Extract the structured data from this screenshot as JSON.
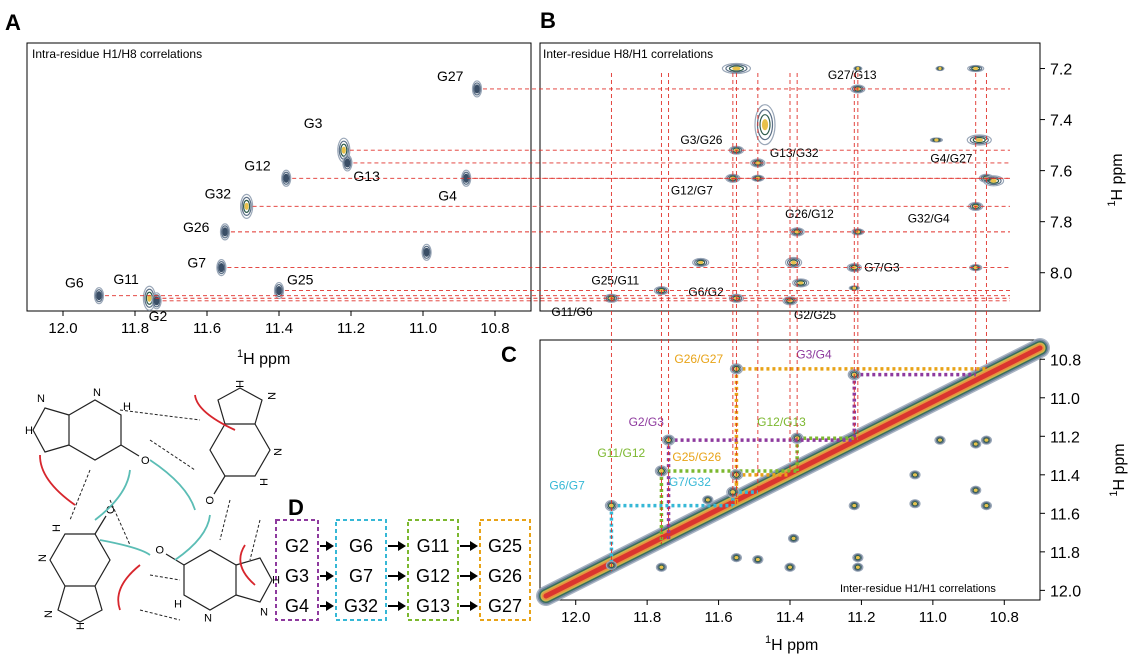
{
  "panels": {
    "A": {
      "letter": "A",
      "title": "Intra-residue H1/H8 correlations",
      "xlabel": "ppm",
      "xlabel_sup": "1",
      "xlabel_base": "H"
    },
    "B": {
      "letter": "B",
      "title": "Inter-residue H8/H1 correlations",
      "ylabel_sup": "1",
      "ylabel_base": "H",
      "ylabel": "ppm"
    },
    "C": {
      "letter": "C",
      "title": "Inter-residue H1/H1 correlations",
      "xlabel_sup": "1",
      "xlabel_base": "H",
      "xlabel": "ppm",
      "ylabel_sup": "1",
      "ylabel_base": "H",
      "ylabel": "ppm"
    },
    "D": {
      "letter": "D"
    }
  },
  "chart_data": [
    {
      "type": "scatter",
      "title": "Intra-residue H1/H8 correlations",
      "xlabel": "1H ppm",
      "x_ticks": [
        "12.0",
        "11.8",
        "11.6",
        "11.4",
        "11.2",
        "11.0",
        "10.8"
      ],
      "xlim": [
        12.1,
        10.7
      ],
      "ylim": [
        8.15,
        7.1
      ],
      "points": [
        {
          "label": "G27",
          "x": 10.85,
          "y": 7.28
        },
        {
          "label": "G3",
          "x": 11.22,
          "y": 7.52
        },
        {
          "label": "G13",
          "x": 11.21,
          "y": 7.57
        },
        {
          "label": "G12",
          "x": 11.38,
          "y": 7.63
        },
        {
          "label": "G4",
          "x": 10.88,
          "y": 7.63
        },
        {
          "label": "G32",
          "x": 11.49,
          "y": 7.74
        },
        {
          "label": "G26",
          "x": 11.55,
          "y": 7.84
        },
        {
          "label": "G7",
          "x": 11.56,
          "y": 7.98
        },
        {
          "label": "G25",
          "x": 11.4,
          "y": 8.07
        },
        {
          "label": "G6",
          "x": 11.9,
          "y": 8.09
        },
        {
          "label": "G11",
          "x": 11.76,
          "y": 8.1
        },
        {
          "label": "G2",
          "x": 11.74,
          "y": 8.11
        },
        {
          "label": "",
          "x": 10.99,
          "y": 7.92
        }
      ]
    },
    {
      "type": "scatter",
      "title": "Inter-residue H8/H1 correlations",
      "ylabel": "1H ppm",
      "y_ticks": [
        "7.2",
        "7.4",
        "7.6",
        "7.8",
        "8.0"
      ],
      "ylim": [
        7.1,
        8.15
      ],
      "points": [
        {
          "label": "G27/G13",
          "x": 11.21,
          "y": 7.28
        },
        {
          "label": "G3/G26",
          "x": 11.55,
          "y": 7.52
        },
        {
          "label": "G13/G32",
          "x": 11.49,
          "y": 7.57
        },
        {
          "label": "G12/G7",
          "x": 11.56,
          "y": 7.63
        },
        {
          "label": "G4/G27",
          "x": 10.85,
          "y": 7.63
        },
        {
          "label": "G26/G12",
          "x": 11.38,
          "y": 7.84
        },
        {
          "label": "G32/G4",
          "x": 10.88,
          "y": 7.74
        },
        {
          "label": "G7/G3",
          "x": 11.22,
          "y": 7.98
        },
        {
          "label": "G25/G11",
          "x": 11.76,
          "y": 8.07
        },
        {
          "label": "G6/G2",
          "x": 11.55,
          "y": 8.1
        },
        {
          "label": "G2/G25",
          "x": 11.4,
          "y": 8.11
        },
        {
          "label": "G11/G6",
          "x": 11.9,
          "y": 8.1
        }
      ]
    },
    {
      "type": "scatter",
      "title": "Inter-residue H1/H1 correlations",
      "xlabel": "1H ppm",
      "ylabel": "1H ppm",
      "x_ticks": [
        "12.0",
        "11.8",
        "11.6",
        "11.4",
        "11.2",
        "11.0",
        "10.8"
      ],
      "y_ticks": [
        "10.8",
        "11.0",
        "11.2",
        "11.4",
        "11.6",
        "11.8",
        "12.0"
      ],
      "xlim": [
        12.1,
        10.7
      ],
      "ylim": [
        10.7,
        12.05
      ],
      "crosspeaks": [
        {
          "label": "G26/G27",
          "x": 11.55,
          "y": 10.85,
          "color": "#e8a317"
        },
        {
          "label": "G3/G4",
          "x": 11.22,
          "y": 10.88,
          "color": "#8e3a9e"
        },
        {
          "label": "G12/G13",
          "x": 11.38,
          "y": 11.21,
          "color": "#7cb82f"
        },
        {
          "label": "G2/G3",
          "x": 11.74,
          "y": 11.22,
          "color": "#8e3a9e"
        },
        {
          "label": "G11/G12",
          "x": 11.76,
          "y": 11.38,
          "color": "#7cb82f"
        },
        {
          "label": "G25/G26",
          "x": 11.55,
          "y": 11.4,
          "color": "#e8a317"
        },
        {
          "label": "G7/G32",
          "x": 11.56,
          "y": 11.49,
          "color": "#36b8d6"
        },
        {
          "label": "G6/G7",
          "x": 11.9,
          "y": 11.56,
          "color": "#36b8d6"
        }
      ]
    }
  ],
  "panelD": {
    "columns": [
      {
        "color": "#8e3a9e",
        "items": [
          "G2",
          "G3",
          "G4"
        ]
      },
      {
        "color": "#36b8d6",
        "items": [
          "G6",
          "G7",
          "G32"
        ]
      },
      {
        "color": "#7cb82f",
        "items": [
          "G11",
          "G12",
          "G13"
        ]
      },
      {
        "color": "#e8a317",
        "items": [
          "G25",
          "G26",
          "G27"
        ]
      }
    ]
  },
  "quartet": {
    "labels": [
      "R",
      "H",
      "N",
      "H",
      "H",
      "N",
      "H",
      "O",
      "H",
      "H",
      "O",
      "N",
      "H",
      "H",
      "H",
      "N",
      "R"
    ]
  },
  "colors": {
    "red_dash": "#e0312b",
    "teal": "#5bbdb5",
    "arrow_red": "#d7262d"
  }
}
